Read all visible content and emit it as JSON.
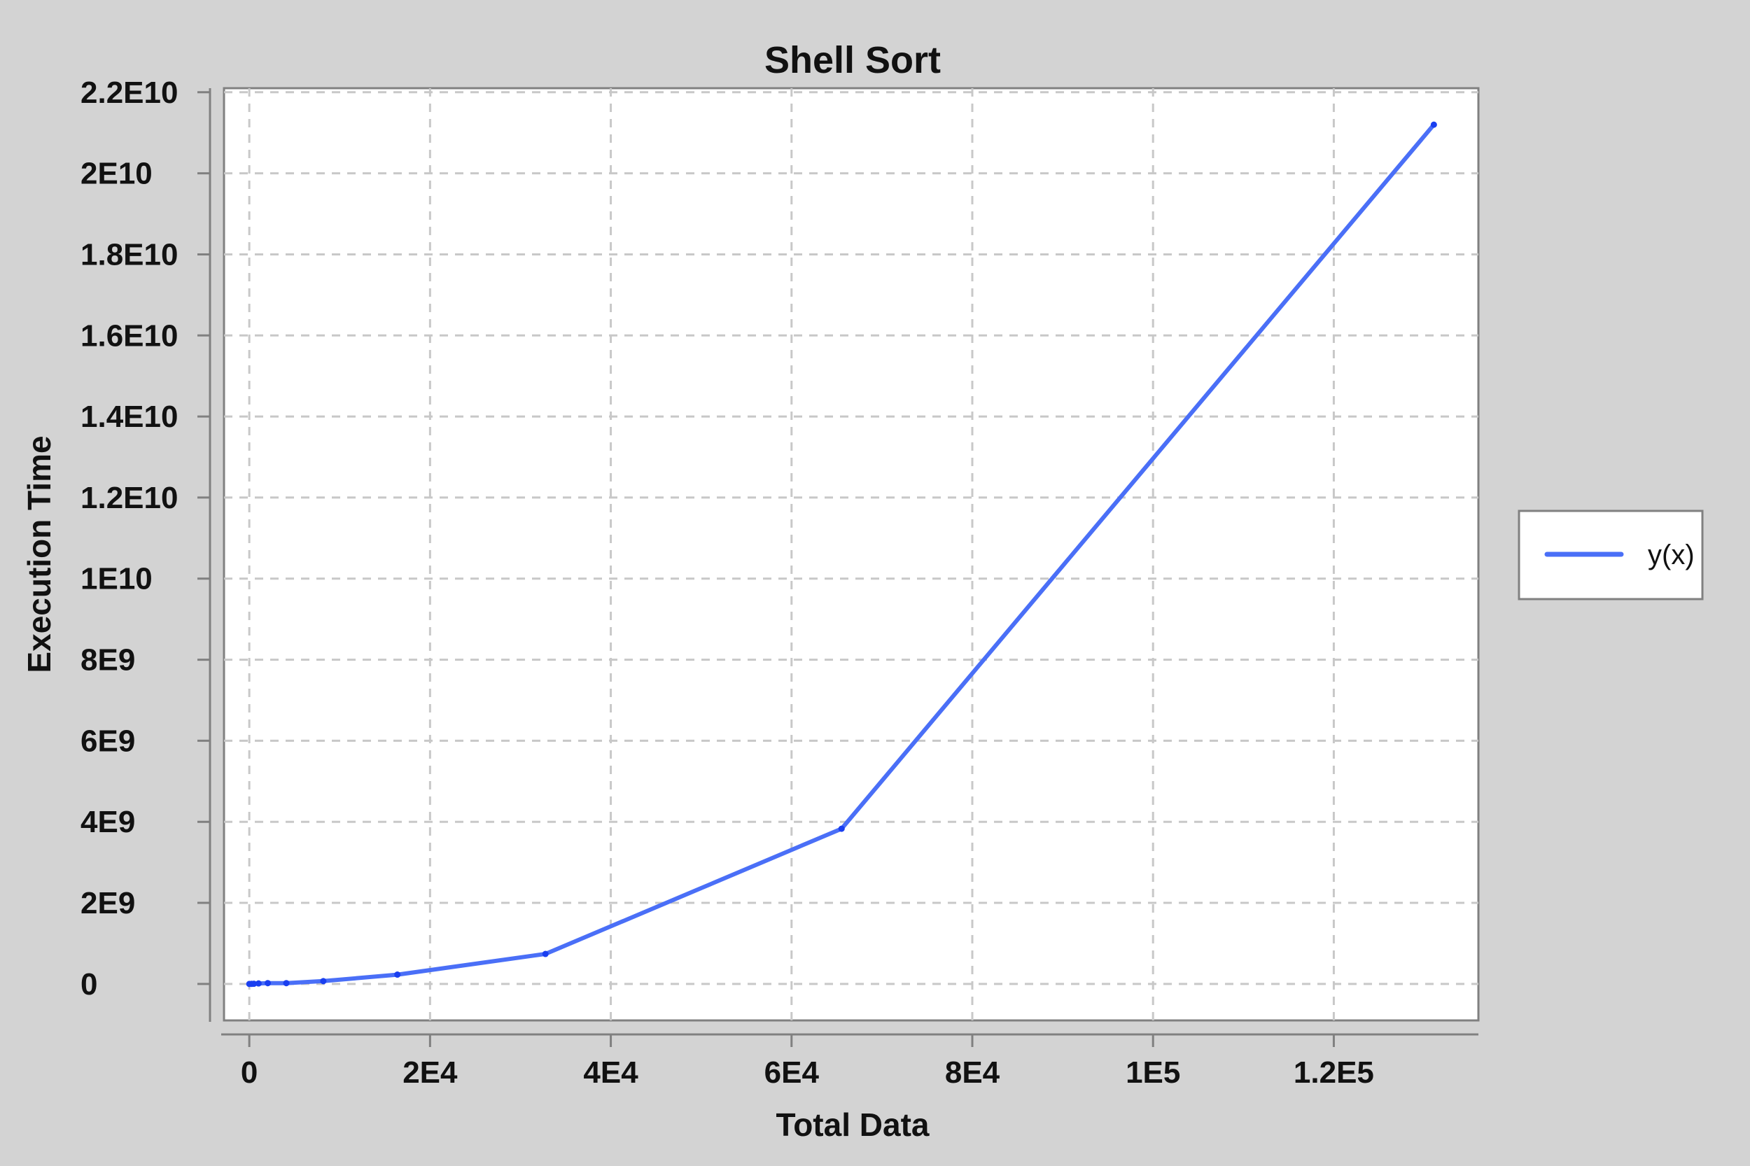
{
  "chart_data": {
    "type": "line",
    "title": "Shell Sort",
    "xlabel": "Total Data",
    "ylabel": "Execution Time",
    "xlim": [
      -2800,
      136000
    ],
    "ylim": [
      -900000000,
      22100000000
    ],
    "xticks": [
      0,
      20000,
      40000,
      60000,
      80000,
      100000,
      120000
    ],
    "xtick_labels": [
      "0",
      "2E4",
      "4E4",
      "6E4",
      "8E4",
      "1E5",
      "1.2E5"
    ],
    "yticks": [
      0,
      2000000000,
      4000000000,
      6000000000,
      8000000000,
      10000000000,
      12000000000,
      14000000000,
      16000000000,
      18000000000,
      20000000000,
      22000000000
    ],
    "ytick_labels": [
      "0",
      "2E9",
      "4E9",
      "6E9",
      "8E9",
      "1E10",
      "1.2E10",
      "1.4E10",
      "1.6E10",
      "1.8E10",
      "2E10",
      "2.2E10"
    ],
    "grid": true,
    "legend_position": "right",
    "series": [
      {
        "name": "y(x)",
        "color": "#4a6ff7",
        "marker_color": "#1a3ff0",
        "x": [
          0,
          256,
          512,
          1024,
          2048,
          4096,
          8192,
          16384,
          32768,
          65536,
          131072
        ],
        "y": [
          0,
          2000000,
          5000000,
          12000000,
          20000000,
          20000000,
          70000000,
          230000000,
          740000000,
          3830000000,
          21200000000
        ]
      }
    ]
  }
}
